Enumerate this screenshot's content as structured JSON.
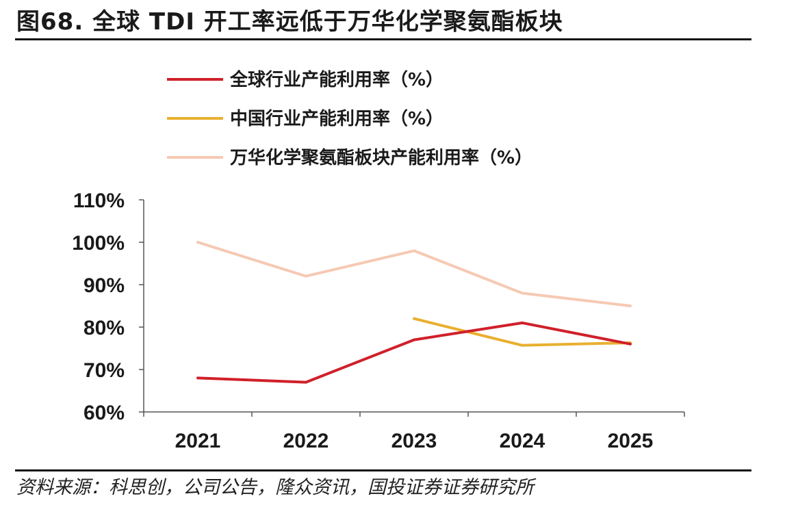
{
  "header": {
    "title": "图68. 全球 TDI 开工率远低于万华化学聚氨酯板块"
  },
  "footer": {
    "source": "资料来源：科思创，公司公告，隆众资讯，国投证券证券研究所"
  },
  "chart_data": {
    "type": "line",
    "categories": [
      "2021",
      "2022",
      "2023",
      "2024",
      "2025"
    ],
    "ylim": [
      60,
      110
    ],
    "yticks": [
      60,
      70,
      80,
      90,
      100,
      110
    ],
    "ytick_labels": [
      "60%",
      "70%",
      "80%",
      "90%",
      "100%",
      "110%"
    ],
    "grid": false,
    "legend_position": "top-left",
    "series": [
      {
        "name": "全球行业产能利用率（%）",
        "color": "#d0202a",
        "values": [
          68,
          67,
          77,
          81,
          76
        ]
      },
      {
        "name": "中国行业产能利用率（%）",
        "color": "#e8b030",
        "values": [
          null,
          null,
          82,
          75.7,
          76.3
        ]
      },
      {
        "name": "万华化学聚氨酯板块产能利用率（%）",
        "color": "#f6c9b3",
        "values": [
          100,
          92,
          98,
          88,
          85
        ]
      }
    ]
  }
}
